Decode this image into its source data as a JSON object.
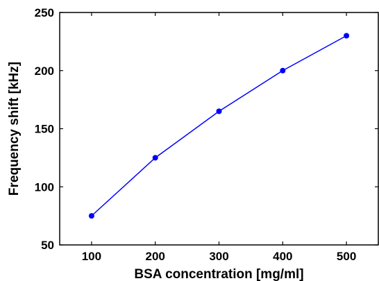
{
  "chart_data": {
    "type": "line",
    "title": "",
    "xlabel": "BSA concentration [mg/ml]",
    "ylabel": "Frequency shift [kHz]",
    "xlim": [
      50,
      550
    ],
    "ylim": [
      50,
      250
    ],
    "xticks": [
      100,
      200,
      300,
      400,
      500
    ],
    "yticks": [
      50,
      100,
      150,
      200,
      250
    ],
    "grid": false,
    "legend": "none",
    "series": [
      {
        "x": [
          100,
          200,
          300,
          400,
          500
        ],
        "y": [
          75,
          125,
          165,
          200,
          230
        ],
        "color": "#0000ff",
        "marker": "circle"
      }
    ]
  }
}
